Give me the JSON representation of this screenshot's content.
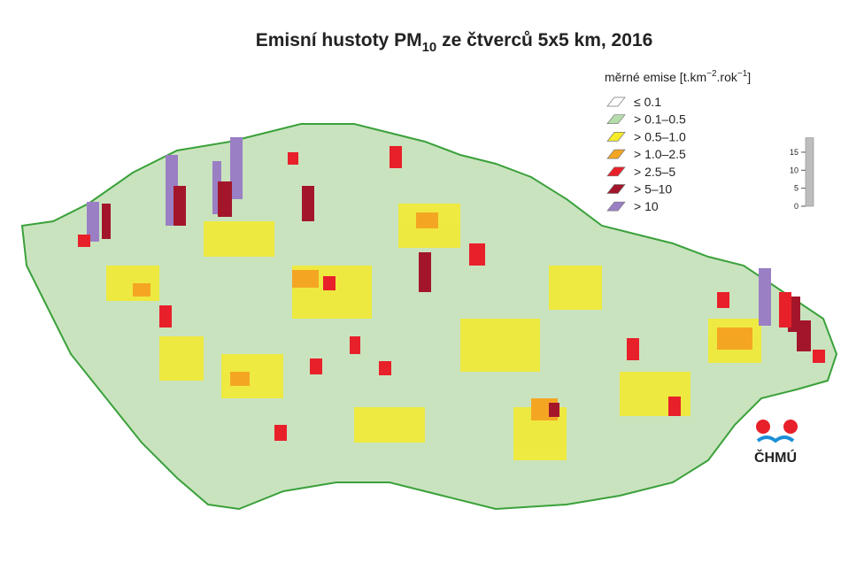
{
  "title": {
    "main": "Emisní hustoty PM",
    "sub": "10",
    "rest": " ze čtverců 5x5 km, 2016"
  },
  "legend": {
    "title": {
      "t1": "měrné emise [t.km",
      "s1": "−2",
      "t2": ".rok",
      "s2": "−1",
      "t3": "]"
    },
    "items": [
      {
        "label": "≤ 0.1",
        "color": "#ffffff"
      },
      {
        "label": "> 0.1–0.5",
        "color": "#b5dcab"
      },
      {
        "label": "> 0.5–1.0",
        "color": "#f5eb2a"
      },
      {
        "label": "> 1.0–2.5",
        "color": "#f4a623"
      },
      {
        "label": "> 2.5–5",
        "color": "#e8202a"
      },
      {
        "label": "> 5–10",
        "color": "#a3162a"
      },
      {
        "label": "> 10",
        "color": "#9a7fc4"
      }
    ]
  },
  "scale": {
    "lim": [
      0,
      19
    ],
    "ticks": [
      0,
      5,
      10,
      15
    ]
  },
  "logo": "ČHMÚ"
}
